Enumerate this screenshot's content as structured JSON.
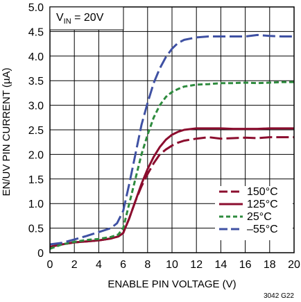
{
  "chart_data": {
    "type": "line",
    "annotation": {
      "main": "V",
      "sub": "IN",
      "rest": " = 20V"
    },
    "xlabel": "ENABLE PIN VOLTAGE (V)",
    "ylabel": "EN/UV PIN CURRENT (µA)",
    "xlim": [
      0,
      20
    ],
    "ylim": [
      0,
      5.0
    ],
    "xticks": [
      "0",
      "2",
      "4",
      "6",
      "8",
      "10",
      "12",
      "14",
      "16",
      "18",
      "20"
    ],
    "yticks": [
      "0",
      "0.5",
      "1.0",
      "1.5",
      "2.0",
      "2.5",
      "3.0",
      "3.5",
      "4.0",
      "4.5",
      "5.0"
    ],
    "grid": true,
    "legend_position": "bottom-right",
    "figure_id": "3042 G22",
    "series": [
      {
        "name": "150°C",
        "color": "#8b0d2e",
        "dash": "long-dash",
        "points": [
          [
            0,
            0.12
          ],
          [
            1,
            0.17
          ],
          [
            2,
            0.21
          ],
          [
            3,
            0.23
          ],
          [
            4,
            0.25
          ],
          [
            5,
            0.29
          ],
          [
            5.6,
            0.33
          ],
          [
            6,
            0.4
          ],
          [
            6.5,
            0.7
          ],
          [
            7,
            1.05
          ],
          [
            7.5,
            1.35
          ],
          [
            8,
            1.6
          ],
          [
            8.5,
            1.82
          ],
          [
            9,
            2.0
          ],
          [
            9.5,
            2.1
          ],
          [
            10,
            2.18
          ],
          [
            10.5,
            2.24
          ],
          [
            11,
            2.28
          ],
          [
            12,
            2.32
          ],
          [
            13,
            2.35
          ],
          [
            14,
            2.32
          ],
          [
            15,
            2.33
          ],
          [
            16,
            2.34
          ],
          [
            17,
            2.33
          ],
          [
            18,
            2.35
          ],
          [
            19,
            2.35
          ],
          [
            20,
            2.35
          ]
        ]
      },
      {
        "name": "125°C",
        "color": "#8b0d2e",
        "dash": "solid",
        "points": [
          [
            0,
            0.12
          ],
          [
            1,
            0.17
          ],
          [
            2,
            0.21
          ],
          [
            3,
            0.23
          ],
          [
            4,
            0.25
          ],
          [
            5,
            0.29
          ],
          [
            5.6,
            0.33
          ],
          [
            6,
            0.4
          ],
          [
            6.5,
            0.7
          ],
          [
            7,
            1.05
          ],
          [
            7.5,
            1.4
          ],
          [
            8,
            1.7
          ],
          [
            8.5,
            1.95
          ],
          [
            9,
            2.15
          ],
          [
            9.5,
            2.3
          ],
          [
            10,
            2.4
          ],
          [
            10.5,
            2.46
          ],
          [
            11,
            2.5
          ],
          [
            12,
            2.53
          ],
          [
            13,
            2.53
          ],
          [
            14,
            2.53
          ],
          [
            15,
            2.52
          ],
          [
            16,
            2.52
          ],
          [
            17,
            2.52
          ],
          [
            18,
            2.53
          ],
          [
            19,
            2.53
          ],
          [
            20,
            2.53
          ]
        ]
      },
      {
        "name": "25°C",
        "color": "#2e8b3e",
        "dash": "short-dash",
        "points": [
          [
            0,
            0.08
          ],
          [
            1,
            0.17
          ],
          [
            2,
            0.22
          ],
          [
            3,
            0.26
          ],
          [
            4,
            0.28
          ],
          [
            5,
            0.32
          ],
          [
            5.6,
            0.37
          ],
          [
            6,
            0.5
          ],
          [
            6.5,
            1.0
          ],
          [
            7,
            1.5
          ],
          [
            7.5,
            2.0
          ],
          [
            8,
            2.4
          ],
          [
            8.5,
            2.75
          ],
          [
            9,
            3.0
          ],
          [
            9.5,
            3.17
          ],
          [
            10,
            3.27
          ],
          [
            10.5,
            3.33
          ],
          [
            11,
            3.38
          ],
          [
            12,
            3.42
          ],
          [
            13,
            3.43
          ],
          [
            14,
            3.45
          ],
          [
            15,
            3.45
          ],
          [
            16,
            3.46
          ],
          [
            17,
            3.45
          ],
          [
            18,
            3.46
          ],
          [
            19,
            3.47
          ],
          [
            20,
            3.47
          ]
        ]
      },
      {
        "name": "–55°C",
        "color": "#3f51a3",
        "dash": "long-dash",
        "points": [
          [
            0,
            0.17
          ],
          [
            1,
            0.2
          ],
          [
            2,
            0.27
          ],
          [
            3,
            0.34
          ],
          [
            4,
            0.42
          ],
          [
            5,
            0.5
          ],
          [
            5.5,
            0.6
          ],
          [
            6,
            0.85
          ],
          [
            6.5,
            1.4
          ],
          [
            7,
            2.0
          ],
          [
            7.5,
            2.6
          ],
          [
            8,
            3.05
          ],
          [
            8.5,
            3.45
          ],
          [
            9,
            3.75
          ],
          [
            9.5,
            3.98
          ],
          [
            10,
            4.15
          ],
          [
            10.5,
            4.27
          ],
          [
            11,
            4.33
          ],
          [
            12,
            4.38
          ],
          [
            13,
            4.4
          ],
          [
            14,
            4.4
          ],
          [
            15,
            4.4
          ],
          [
            16,
            4.4
          ],
          [
            17,
            4.43
          ],
          [
            18,
            4.41
          ],
          [
            19,
            4.4
          ],
          [
            20,
            4.4
          ]
        ]
      }
    ]
  }
}
